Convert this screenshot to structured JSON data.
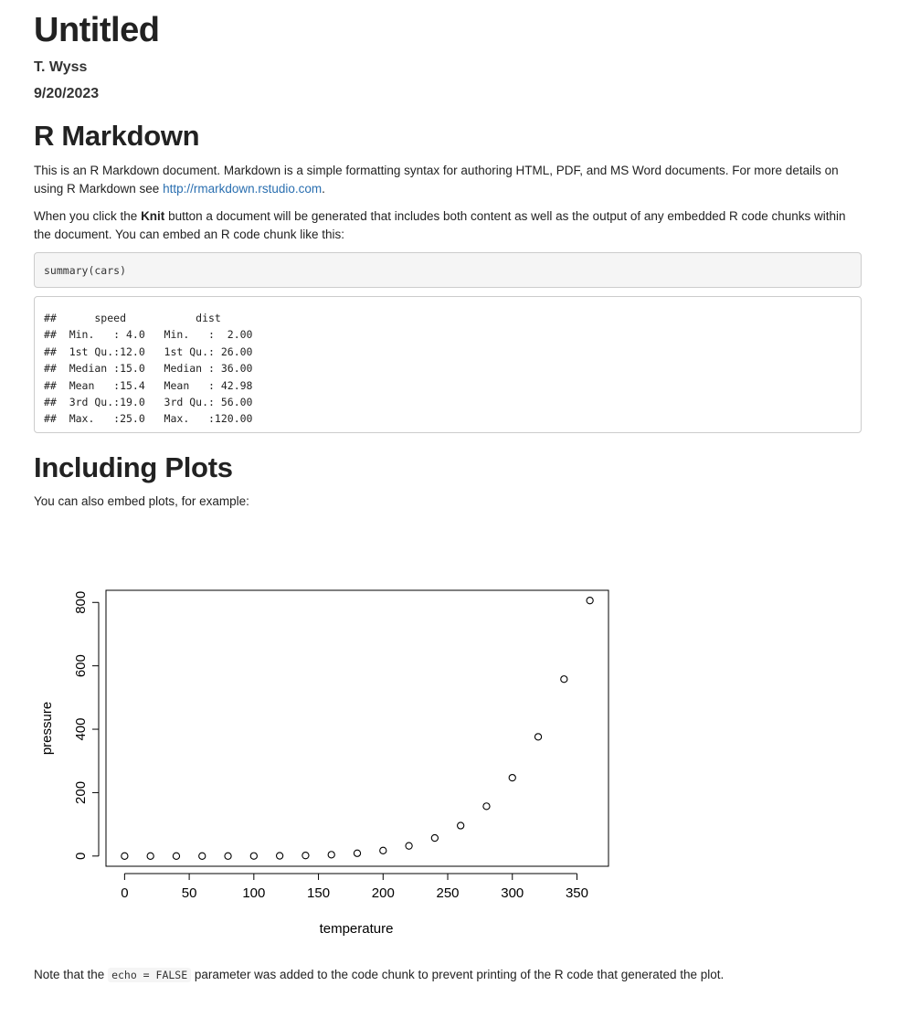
{
  "doc": {
    "title": "Untitled",
    "author": "T. Wyss",
    "date": "9/20/2023"
  },
  "section1": {
    "heading": "R Markdown",
    "para1_text": "This is an R Markdown document. Markdown is a simple formatting syntax for authoring HTML, PDF, and MS Word documents. For more details on using R Markdown see ",
    "para1_link": "http://rmarkdown.rstudio.com",
    "para1_end": ".",
    "para2_pre": "When you click the ",
    "para2_bold": "Knit",
    "para2_post": " button a document will be generated that includes both content as well as the output of any embedded R code chunks within the document. You can embed an R code chunk like this:",
    "code": "summary(cars)",
    "output_lines": [
      "##      speed           dist       ",
      "##  Min.   : 4.0   Min.   :  2.00  ",
      "##  1st Qu.:12.0   1st Qu.: 26.00  ",
      "##  Median :15.0   Median : 36.00  ",
      "##  Mean   :15.4   Mean   : 42.98  ",
      "##  3rd Qu.:19.0   3rd Qu.: 56.00  ",
      "##  Max.   :25.0   Max.   :120.00  "
    ]
  },
  "section2": {
    "heading": "Including Plots",
    "para": "You can also embed plots, for example:",
    "note_pre": "Note that the ",
    "note_code": "echo = FALSE",
    "note_post": " parameter was added to the code chunk to prevent printing of the R code that generated the plot."
  },
  "chart_data": {
    "type": "scatter",
    "title": "",
    "xlabel": "temperature",
    "ylabel": "pressure",
    "x": [
      0,
      20,
      40,
      60,
      80,
      100,
      120,
      140,
      160,
      180,
      200,
      220,
      240,
      260,
      280,
      300,
      320,
      340,
      360
    ],
    "y": [
      0.0002,
      0.0012,
      0.006,
      0.03,
      0.09,
      0.27,
      0.75,
      1.85,
      4.2,
      8.8,
      17.3,
      32.1,
      57,
      96,
      157,
      247,
      376,
      558,
      806
    ],
    "x_ticks": [
      0,
      50,
      100,
      150,
      200,
      250,
      300,
      350
    ],
    "y_ticks": [
      0,
      200,
      400,
      600,
      800
    ],
    "xlim": [
      -14.4,
      374.4
    ],
    "ylim": [
      -32.24,
      838.24
    ],
    "marker": "open-circle",
    "grid": false,
    "color": "#000000"
  }
}
